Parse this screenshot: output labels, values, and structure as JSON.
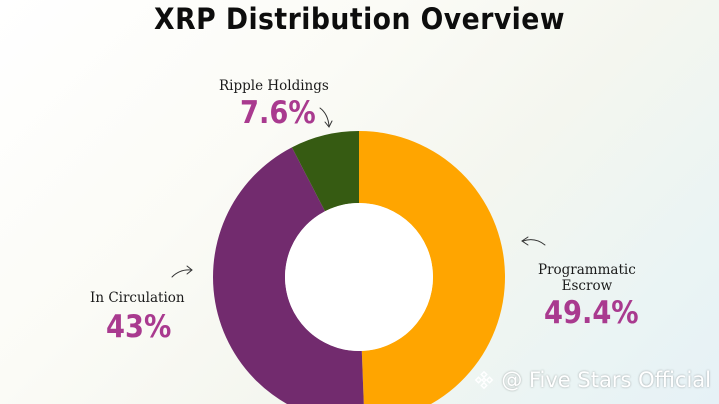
{
  "chart_data": {
    "type": "pie",
    "title": "XRP Distribution Overview",
    "donut": true,
    "slices": [
      {
        "label": "Programmatic\nEscrow",
        "value": 49.4,
        "value_label": "49.4%",
        "color": "#ffa500"
      },
      {
        "label": "In Circulation",
        "value": 43,
        "value_label": "43%",
        "color": "#722b6e"
      },
      {
        "label": "Ripple Holdings",
        "value": 7.6,
        "value_label": "7.6%",
        "color": "#365b12"
      }
    ],
    "value_label_color": "#a93a8f"
  },
  "watermark": {
    "text": "@ Five Stars Official",
    "icon": "binance-logo-icon"
  }
}
